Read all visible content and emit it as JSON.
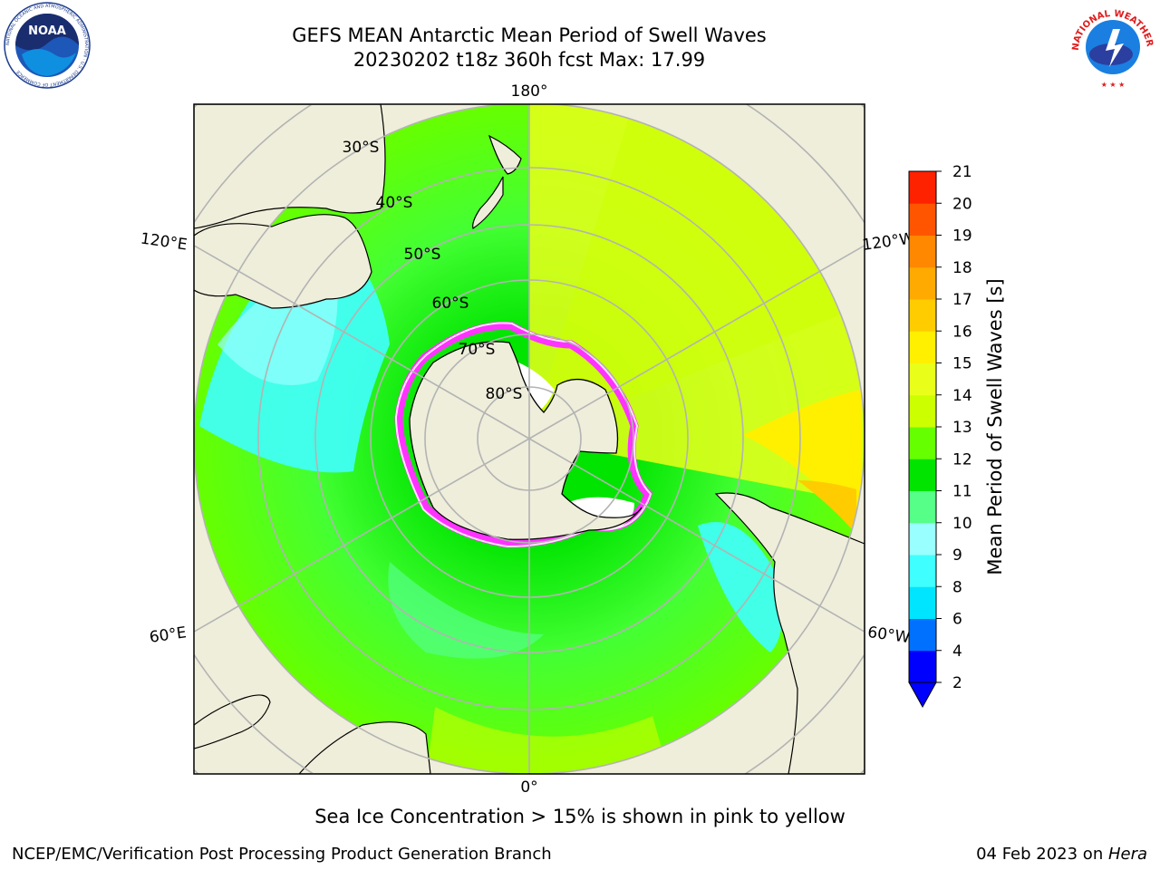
{
  "header": {
    "title_line1": "GEFS MEAN Antarctic Mean Period of Swell Waves",
    "title_line2": "20230202 t18z 360h fcst   Max: 17.99"
  },
  "logos": {
    "left_text": "NOAA",
    "left_ring": "NATIONAL OCEANIC AND ATMOSPHERIC ADMINISTRATION · U.S. DEPARTMENT OF COMMERCE",
    "right_ring": "NATIONAL WEATHER SERVICE"
  },
  "map": {
    "projection": "south-polar-stereographic",
    "lat_labels": [
      "30°S",
      "40°S",
      "50°S",
      "60°S",
      "70°S",
      "80°S"
    ],
    "lon_labels": {
      "top": "180°",
      "bottom": "0°",
      "upper_left": "120°E",
      "lower_left": "60°E",
      "upper_right": "120°W",
      "lower_right": "60°W"
    },
    "colors": {
      "land": "#efeedb",
      "grid": "#b3b3b3",
      "coast": "#000000",
      "sea_ice": "#ff33ff"
    }
  },
  "colorbar": {
    "label": "Mean Period of Swell Waves [s]",
    "ticks": [
      "2",
      "4",
      "6",
      "8",
      "9",
      "10",
      "11",
      "12",
      "13",
      "14",
      "15",
      "16",
      "17",
      "18",
      "19",
      "20",
      "21"
    ],
    "colors": [
      "#0000ff",
      "#0070ff",
      "#00e5ff",
      "#40ffff",
      "#99ffff",
      "#55ff88",
      "#00e400",
      "#66ff00",
      "#ccff00",
      "#e9ff1a",
      "#fff000",
      "#ffcc00",
      "#ffaa00",
      "#ff8800",
      "#ff5500",
      "#ff2200"
    ],
    "under_color": "#0000ff"
  },
  "note": "Sea Ice Concentration > 15% is shown in pink to yellow",
  "footer": {
    "left": "NCEP/EMC/Verification Post Processing Product Generation Branch",
    "right_date": "04 Feb 2023 on ",
    "right_host": "Hera"
  }
}
